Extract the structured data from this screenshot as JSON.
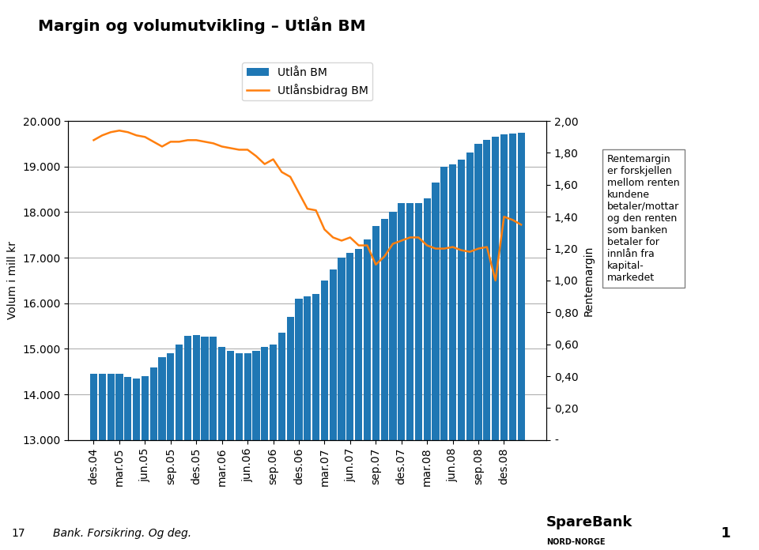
{
  "chart_data": {
    "type": "bar",
    "title": "Margin og volumutvikling – Utlån BM",
    "y_label": "Volum i mill kr",
    "y2_label": "Rentemargin",
    "categories": [
      "des.04",
      null,
      null,
      "mar.05",
      null,
      null,
      "jun.05",
      null,
      null,
      "sep.05",
      null,
      null,
      "des.05",
      null,
      null,
      "mar.06",
      null,
      null,
      "jun.06",
      null,
      null,
      "sep.06",
      null,
      null,
      "des.06",
      null,
      null,
      "mar.07",
      null,
      null,
      "jun.07",
      null,
      null,
      "sep.07",
      null,
      null,
      "des.07",
      null,
      null,
      "mar.08",
      null,
      null,
      "jun.08",
      null,
      null,
      "sep.08",
      null,
      null,
      "des.08",
      null,
      null
    ],
    "series": [
      {
        "name": "Utlån BM",
        "type": "bar",
        "values": [
          14450,
          14450,
          14450,
          14450,
          14390,
          14350,
          14400,
          14600,
          14820,
          14900,
          15100,
          15280,
          15300,
          15260,
          15260,
          15050,
          14950,
          14900,
          14900,
          14950,
          15050,
          15100,
          15350,
          15700,
          16100,
          16150,
          16200,
          16500,
          16750,
          17000,
          17100,
          17200,
          17400,
          17700,
          17850,
          18000,
          18200,
          18200,
          18200,
          18300,
          18650,
          19000,
          19050,
          19150,
          19300,
          19500,
          19580,
          19650,
          19700,
          19720,
          19750
        ]
      },
      {
        "name": "Utlånsbidrag BM",
        "type": "line",
        "axis": "y2",
        "values": [
          1.88,
          1.91,
          1.93,
          1.94,
          1.93,
          1.91,
          1.9,
          1.87,
          1.84,
          1.87,
          1.87,
          1.88,
          1.88,
          1.87,
          1.86,
          1.84,
          1.83,
          1.82,
          1.82,
          1.78,
          1.73,
          1.76,
          1.68,
          1.65,
          1.55,
          1.45,
          1.44,
          1.32,
          1.27,
          1.25,
          1.27,
          1.22,
          1.22,
          1.1,
          1.15,
          1.23,
          1.25,
          1.27,
          1.27,
          1.22,
          1.2,
          1.2,
          1.21,
          1.19,
          1.18,
          1.2,
          1.21,
          1.0,
          1.4,
          1.38,
          1.35
        ]
      }
    ],
    "ylim": [
      13000,
      20000
    ],
    "yticks": [
      {
        "value": 13000,
        "label": "13.000"
      },
      {
        "value": 14000,
        "label": "14.000"
      },
      {
        "value": 15000,
        "label": "15.000"
      },
      {
        "value": 16000,
        "label": "16.000"
      },
      {
        "value": 17000,
        "label": "17.000"
      },
      {
        "value": 18000,
        "label": "18.000"
      },
      {
        "value": 19000,
        "label": "19.000"
      },
      {
        "value": 20000,
        "label": "20.000"
      }
    ],
    "y2lim": [
      0.0,
      2.0
    ],
    "y2ticks": [
      {
        "value": 0.0,
        "label": "-"
      },
      {
        "value": 0.2,
        "label": "0,20"
      },
      {
        "value": 0.4,
        "label": "0,40"
      },
      {
        "value": 0.6,
        "label": "0,60"
      },
      {
        "value": 0.8,
        "label": "0,80"
      },
      {
        "value": 1.0,
        "label": "1,00"
      },
      {
        "value": 1.2,
        "label": "1,20"
      },
      {
        "value": 1.4,
        "label": "1,40"
      },
      {
        "value": 1.6,
        "label": "1,60"
      },
      {
        "value": 1.8,
        "label": "1,80"
      },
      {
        "value": 2.0,
        "label": "2,00"
      }
    ],
    "grid": "y",
    "legend": "upper center",
    "annotations": [
      "Rentemargin\ner forskjellen\nmellom renten\nkundene\nbetaler/mottar\nog den renten\nsom banken\nbetaler for\ninnlån fra\nkapital-\nmarkedet",
      "17",
      "Bank. Forsikring. Og deg.",
      "SpareBank",
      "NORD-NORGE",
      "1"
    ]
  }
}
